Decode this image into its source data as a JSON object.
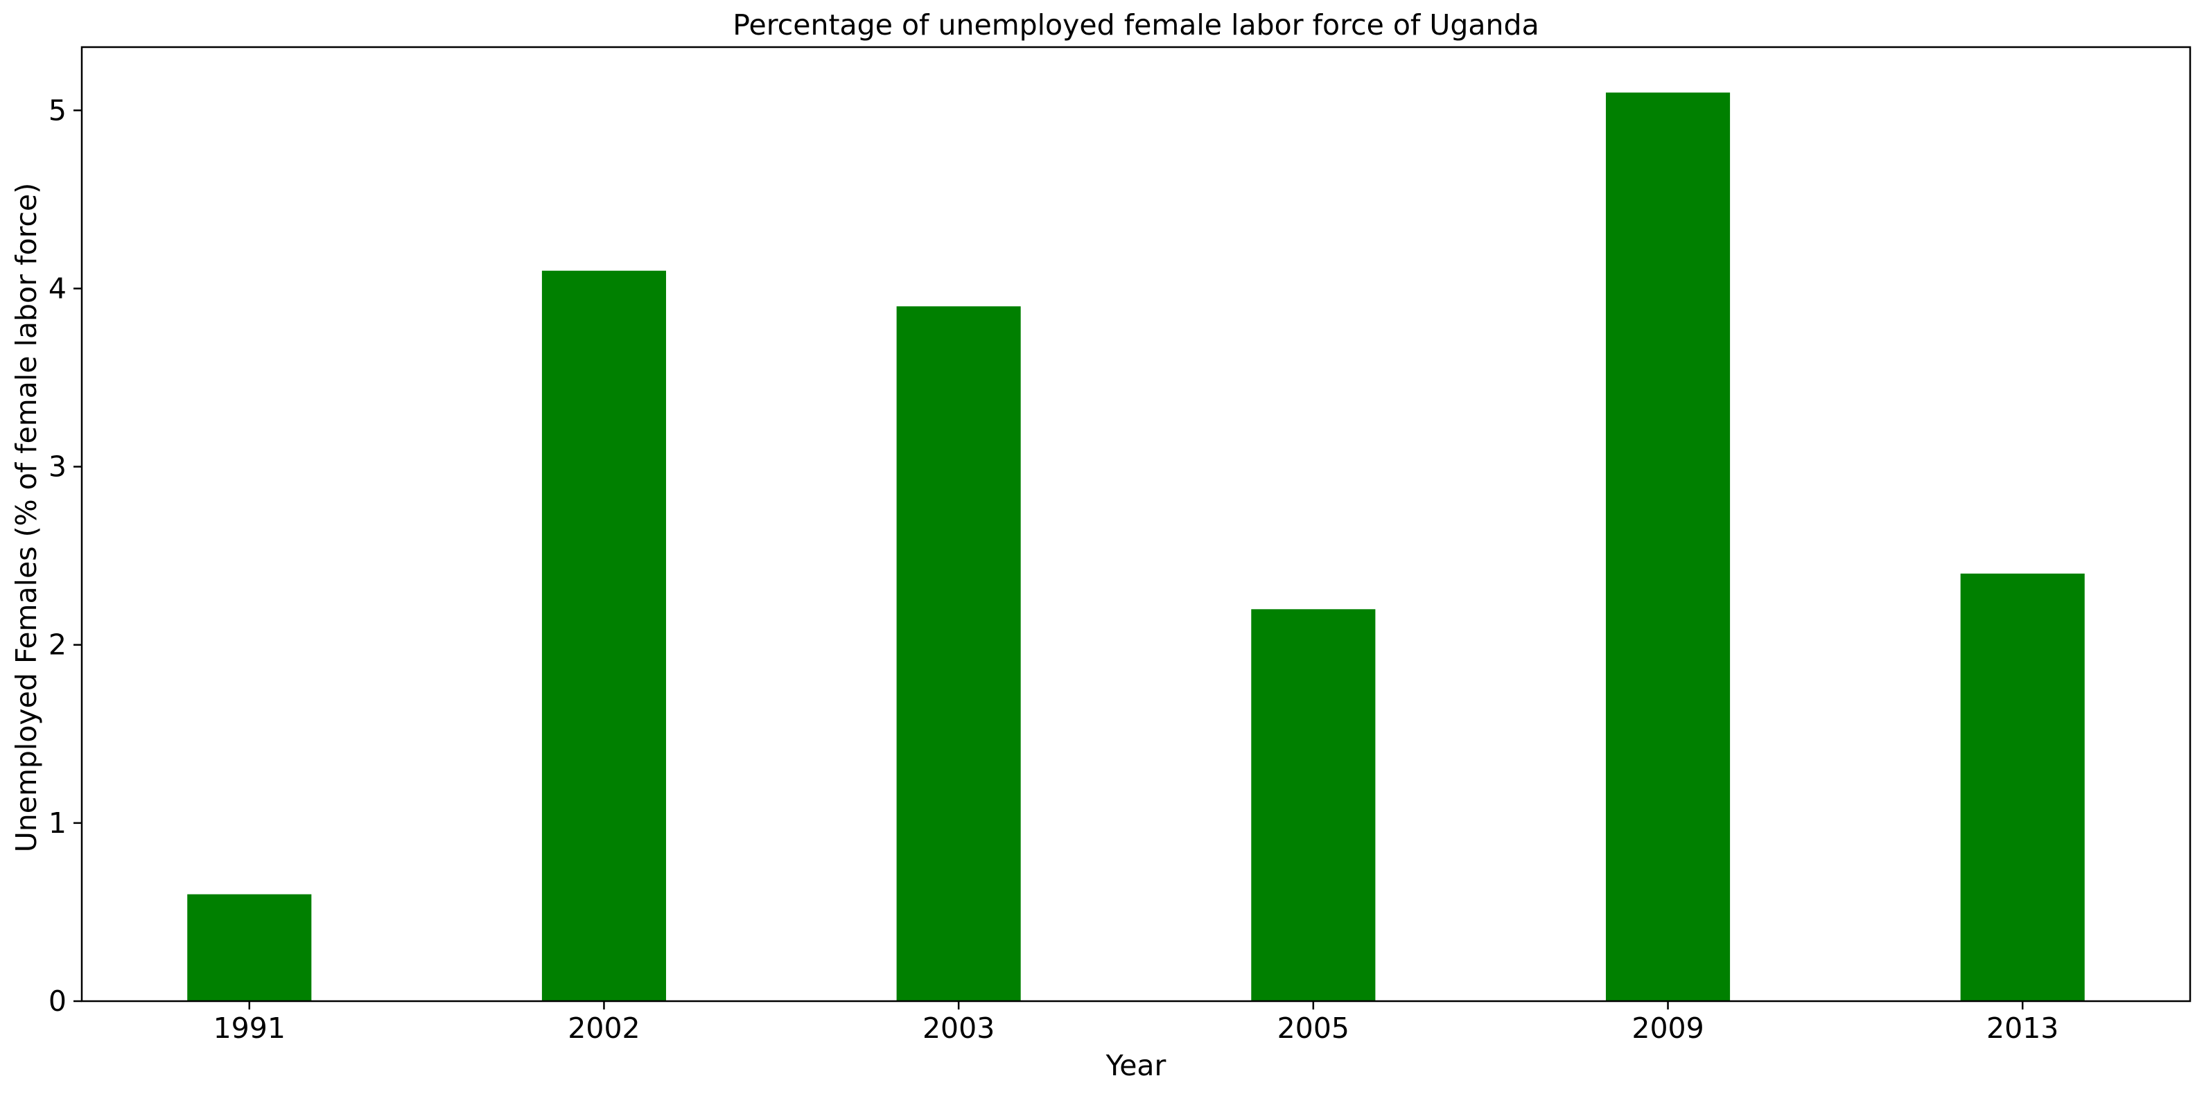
{
  "chart_data": {
    "type": "bar",
    "title": "Percentage of unemployed female labor force of Uganda",
    "xlabel": "Year",
    "ylabel": "Unemployed Females (% of female labor force)",
    "categories": [
      "1991",
      "2002",
      "2003",
      "2005",
      "2009",
      "2013"
    ],
    "values": [
      0.6,
      4.1,
      3.9,
      2.2,
      5.1,
      2.4
    ],
    "ylim": [
      0,
      5.355
    ],
    "yticks": [
      0,
      1,
      2,
      3,
      4,
      5
    ],
    "grid": false,
    "legend": "none",
    "bar_color": "#008000"
  }
}
